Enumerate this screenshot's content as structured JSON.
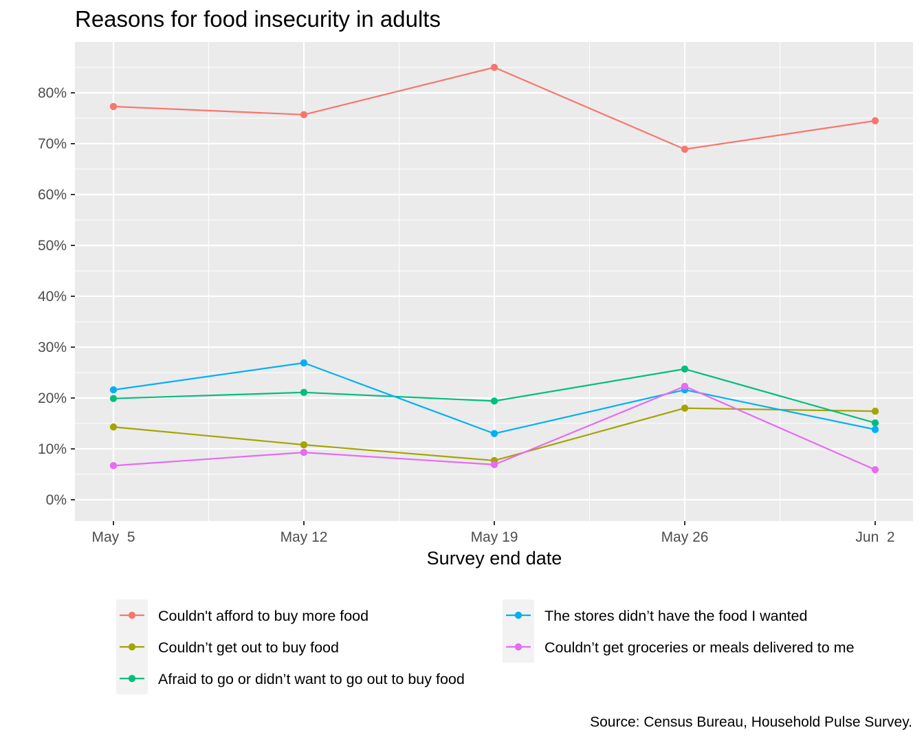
{
  "chart_data": {
    "type": "line",
    "title": "Reasons for food insecurity in adults",
    "xlabel": "Survey end date",
    "ylabel": "",
    "categories": [
      "May  5",
      "May 12",
      "May 19",
      "May 26",
      "Jun  2"
    ],
    "ylim": [
      -0.042,
      0.9
    ],
    "yticks": [
      0,
      0.1,
      0.2,
      0.3,
      0.4,
      0.5,
      0.6,
      0.7,
      0.8
    ],
    "ytick_labels": [
      "0%",
      "10%",
      "20%",
      "30%",
      "40%",
      "50%",
      "60%",
      "70%",
      "80%"
    ],
    "grid": true,
    "legend_position": "bottom",
    "series": [
      {
        "name": "Couldn't afford to buy more food",
        "color": "#F8766D",
        "values": [
          0.773,
          0.757,
          0.85,
          0.689,
          0.745
        ]
      },
      {
        "name": "Couldn’t get out to buy food",
        "color": "#A3A500",
        "values": [
          0.143,
          0.108,
          0.077,
          0.18,
          0.174
        ]
      },
      {
        "name": "Afraid to go or didn’t want to go out to buy food",
        "color": "#00BF7D",
        "values": [
          0.199,
          0.211,
          0.194,
          0.257,
          0.151
        ]
      },
      {
        "name": "The stores didn’t have the food I wanted",
        "color": "#00B0F6",
        "values": [
          0.216,
          0.269,
          0.13,
          0.216,
          0.138
        ]
      },
      {
        "name": "Couldn’t get groceries or meals delivered to me",
        "color": "#E76BF3",
        "values": [
          0.067,
          0.093,
          0.069,
          0.223,
          0.059
        ]
      }
    ],
    "caption": "Source: Census Bureau, Household Pulse Survey."
  }
}
